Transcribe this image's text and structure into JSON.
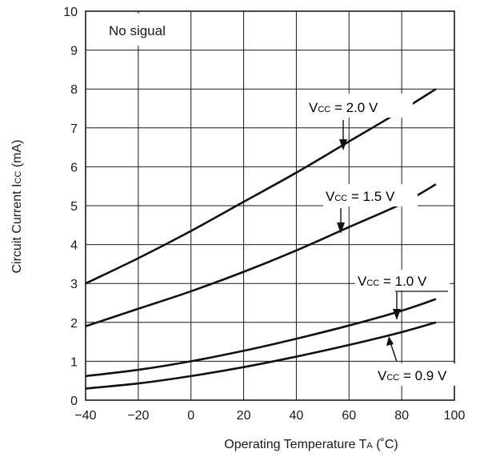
{
  "chart_data": {
    "type": "line",
    "title": "",
    "xlabel": "Operating Temperature T",
    "xlabel_sub": "A",
    "xlabel_unit": "  (˚C)",
    "ylabel": "Circuit Current  I",
    "ylabel_sub": "CC",
    "ylabel_unit": "  (mA)",
    "xlim": [
      -40,
      100
    ],
    "ylim": [
      0,
      10
    ],
    "xticks": [
      -40,
      -20,
      0,
      20,
      40,
      60,
      80,
      100
    ],
    "xtick_labels": [
      "−40",
      "−20",
      "0",
      "20",
      "40",
      "60",
      "80",
      "100"
    ],
    "yticks": [
      0,
      1,
      2,
      3,
      4,
      5,
      6,
      7,
      8,
      9,
      10
    ],
    "ytick_labels": [
      "0",
      "1",
      "2",
      "3",
      "4",
      "5",
      "6",
      "7",
      "8",
      "9",
      "10"
    ],
    "grid": true,
    "annotation": "No sigual",
    "series": [
      {
        "name": "VCC = 2.0 V",
        "label_prefix": "V",
        "label_sub": "CC",
        "label_value": " = 2.0 V",
        "x": [
          -40,
          -20,
          0,
          20,
          40,
          60,
          80,
          93
        ],
        "y": [
          3.0,
          3.65,
          4.35,
          5.1,
          5.85,
          6.65,
          7.45,
          8.0
        ]
      },
      {
        "name": "VCC = 1.5 V",
        "label_prefix": "V",
        "label_sub": "CC",
        "label_value": " = 1.5 V",
        "x": [
          -40,
          -20,
          0,
          20,
          40,
          60,
          80,
          93
        ],
        "y": [
          1.9,
          2.35,
          2.8,
          3.3,
          3.85,
          4.45,
          5.05,
          5.55
        ]
      },
      {
        "name": "VCC = 1.0 V",
        "label_prefix": "V",
        "label_sub": "CC",
        "label_value": " = 1.0 V",
        "x": [
          -40,
          -20,
          0,
          20,
          40,
          60,
          80,
          93
        ],
        "y": [
          0.62,
          0.78,
          1.0,
          1.27,
          1.58,
          1.92,
          2.3,
          2.6
        ]
      },
      {
        "name": "VCC = 0.9 V",
        "label_prefix": "V",
        "label_sub": "CC",
        "label_value": " = 0.9 V",
        "x": [
          -40,
          -20,
          0,
          20,
          40,
          60,
          80,
          93
        ],
        "y": [
          0.3,
          0.43,
          0.62,
          0.85,
          1.12,
          1.42,
          1.75,
          2.0
        ]
      }
    ]
  }
}
